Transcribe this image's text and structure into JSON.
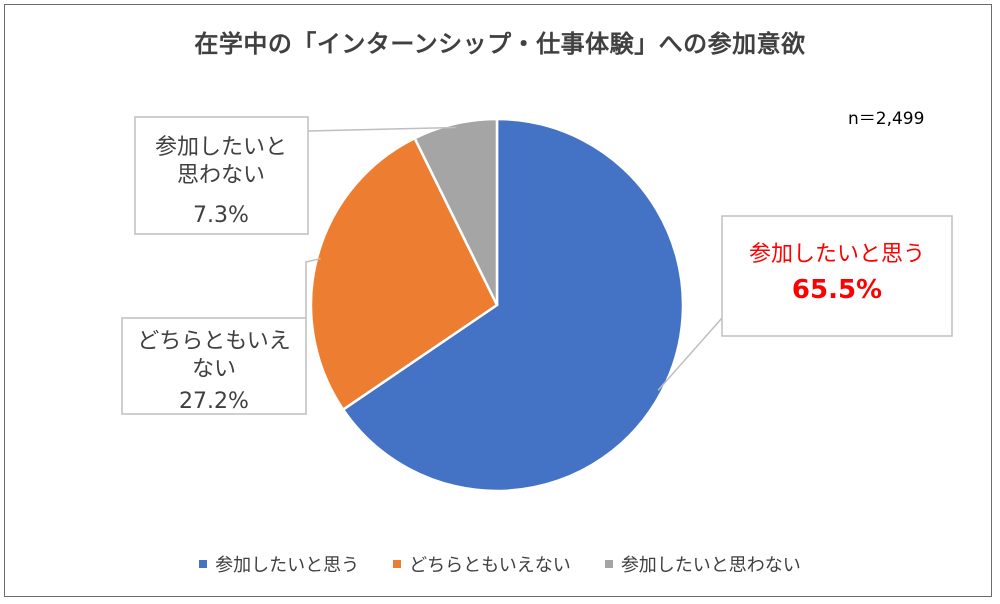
{
  "chart_data": {
    "type": "pie",
    "title": "在学中の「インターンシップ・仕事体験」への参加意欲",
    "sample_size": "n＝2,499",
    "legend_position": "bottom",
    "slices": [
      {
        "name": "参加したいと思う",
        "value": 65.5,
        "value_label": "65.5%",
        "color": "#4472C4",
        "label_lines": [
          "参加したいと思う"
        ],
        "label_color": "#FF0000"
      },
      {
        "name": "どちらともいえない",
        "value": 27.2,
        "value_label": "27.2%",
        "color": "#ED7D31",
        "label_lines": [
          "どちらともいえ",
          "ない"
        ],
        "label_color": "#404040"
      },
      {
        "name": "参加したいと思わない",
        "value": 7.3,
        "value_label": "7.3%",
        "color": "#A5A5A5",
        "label_lines": [
          "参加したいと",
          "思わない"
        ],
        "label_color": "#404040"
      }
    ]
  }
}
